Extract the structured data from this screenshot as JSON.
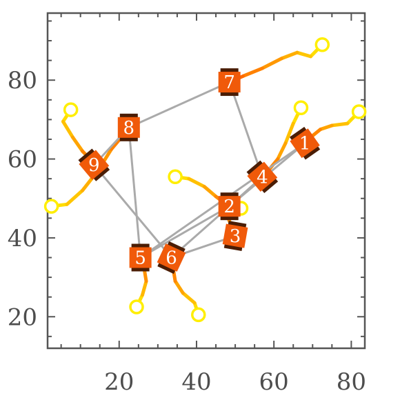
{
  "chart_data": {
    "type": "scatter",
    "title": "",
    "xlabel": "",
    "ylabel": "",
    "xlim": [
      1.5,
      83.5
    ],
    "ylim": [
      12,
      97
    ],
    "x_ticks": [
      20,
      40,
      60,
      80
    ],
    "y_ticks": [
      20,
      40,
      60,
      80
    ],
    "x_tick_labels": [
      "20",
      "40",
      "60",
      "80"
    ],
    "y_tick_labels": [
      "20",
      "40",
      "60",
      "80"
    ],
    "grid": false,
    "colors": {
      "robot_fill": "#f05a0a",
      "robot_wheel": "#4a1d05",
      "link": "#aaaaaa",
      "goal": "#ffee00",
      "trail_start": "#ffdd00",
      "trail_end": "#ff6a00",
      "axis": "#555555"
    },
    "robots": [
      {
        "id": 1,
        "label": "1",
        "x": 68,
        "y": 64,
        "angle": 35,
        "trail": [
          [
            82,
            72
          ],
          [
            79,
            69
          ],
          [
            75,
            68.5
          ],
          [
            72,
            67.5
          ],
          [
            69.5,
            65.5
          ],
          [
            68,
            64
          ]
        ]
      },
      {
        "id": 2,
        "label": "2",
        "x": 48.5,
        "y": 48,
        "angle": 0,
        "trail": [
          [
            34.5,
            55.5
          ],
          [
            38,
            55
          ],
          [
            42,
            53
          ],
          [
            45,
            50.5
          ],
          [
            47,
            49
          ],
          [
            48.5,
            48
          ]
        ]
      },
      {
        "id": 3,
        "label": "3",
        "x": 50,
        "y": 40.5,
        "angle": -10,
        "trail": [
          [
            51.5,
            47.5
          ],
          [
            48.5,
            48
          ],
          [
            48,
            45.5
          ],
          [
            49,
            43
          ],
          [
            50,
            40.5
          ]
        ]
      },
      {
        "id": 4,
        "label": "4",
        "x": 57,
        "y": 55.5,
        "angle": 40,
        "trail": [
          [
            67,
            73
          ],
          [
            65,
            69
          ],
          [
            63,
            64
          ],
          [
            61,
            60
          ],
          [
            58.5,
            57
          ],
          [
            57,
            55.5
          ]
        ]
      },
      {
        "id": 5,
        "label": "5",
        "x": 25.5,
        "y": 35,
        "angle": 0,
        "trail": [
          [
            24.5,
            22.5
          ],
          [
            26,
            25.5
          ],
          [
            27,
            29
          ],
          [
            26.5,
            32
          ],
          [
            25.5,
            35
          ]
        ]
      },
      {
        "id": 6,
        "label": "6",
        "x": 33.5,
        "y": 35,
        "angle": -25,
        "trail": [
          [
            40.5,
            20.5
          ],
          [
            39.5,
            23.5
          ],
          [
            36.5,
            26
          ],
          [
            34.5,
            29
          ],
          [
            34,
            32
          ],
          [
            33.5,
            35
          ]
        ]
      },
      {
        "id": 7,
        "label": "7",
        "x": 48.5,
        "y": 79.5,
        "angle": 0,
        "trail": [
          [
            72.5,
            89
          ],
          [
            69.5,
            86
          ],
          [
            66,
            87
          ],
          [
            62,
            85.5
          ],
          [
            57,
            83
          ],
          [
            52,
            81
          ],
          [
            48.5,
            79.5
          ]
        ]
      },
      {
        "id": 8,
        "label": "8",
        "x": 22.5,
        "y": 68,
        "angle": 0,
        "trail": [
          [
            2.5,
            48
          ],
          [
            6.5,
            48.5
          ],
          [
            10.5,
            52
          ],
          [
            14.5,
            57
          ],
          [
            18,
            62.5
          ],
          [
            21,
            66
          ],
          [
            22.5,
            68
          ]
        ]
      },
      {
        "id": 9,
        "label": "9",
        "x": 13.5,
        "y": 58.5,
        "angle": 40,
        "trail": [
          [
            7.5,
            72.5
          ],
          [
            5.5,
            69.5
          ],
          [
            8,
            65.5
          ],
          [
            10.5,
            62
          ],
          [
            12.5,
            60
          ],
          [
            13.5,
            58.5
          ]
        ]
      }
    ],
    "links": [
      [
        1,
        2
      ],
      [
        1,
        5
      ],
      [
        2,
        4
      ],
      [
        2,
        5
      ],
      [
        2,
        6
      ],
      [
        3,
        6
      ],
      [
        4,
        7
      ],
      [
        4,
        2
      ],
      [
        5,
        8
      ],
      [
        7,
        8
      ],
      [
        8,
        9
      ],
      [
        9,
        6
      ]
    ]
  }
}
